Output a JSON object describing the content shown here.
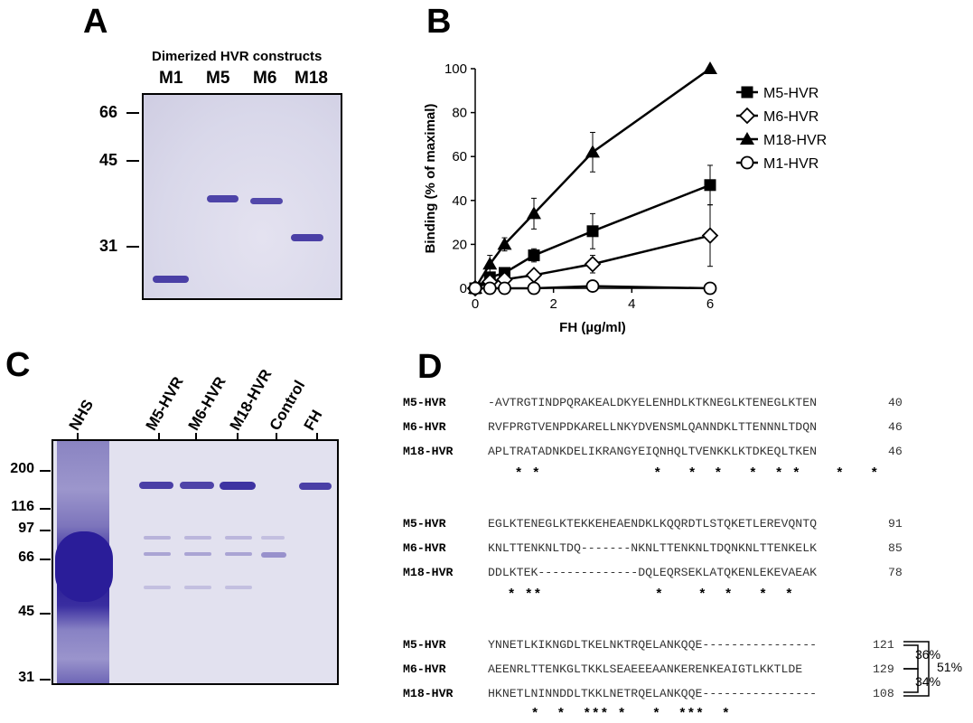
{
  "panels": {
    "a": "A",
    "b": "B",
    "c": "C",
    "d": "D"
  },
  "panelA": {
    "header": "Dimerized HVR constructs",
    "lanes": [
      "M1",
      "M5",
      "M6",
      "M18"
    ],
    "markers": [
      "66",
      "45",
      "31"
    ]
  },
  "panelC": {
    "lanes": [
      "NHS",
      "M5-HVR",
      "M6-HVR",
      "M18-HVR",
      "Control",
      "FH"
    ],
    "markers": [
      "200",
      "116",
      "97",
      "66",
      "45",
      "31"
    ]
  },
  "chart_data": {
    "type": "line",
    "title": "",
    "xlabel": "FH  (µg/ml)",
    "ylabel": "Binding (% of maximal)",
    "xlim": [
      0,
      6
    ],
    "ylim": [
      0,
      100
    ],
    "xticks": [
      "0",
      "2",
      "4",
      "6"
    ],
    "yticks": [
      "0",
      "20",
      "40",
      "60",
      "80",
      "100"
    ],
    "legend_position": "right",
    "series": [
      {
        "name": "M5-HVR",
        "marker": "square-filled",
        "x": [
          0,
          0.375,
          0.75,
          1.5,
          3,
          6
        ],
        "y": [
          0,
          5,
          7,
          15,
          26,
          47
        ],
        "err": [
          0,
          2,
          2,
          3,
          8,
          9
        ]
      },
      {
        "name": "M6-HVR",
        "marker": "diamond-open",
        "x": [
          0,
          0.375,
          0.75,
          1.5,
          3,
          6
        ],
        "y": [
          0,
          3,
          4,
          6,
          11,
          24
        ],
        "err": [
          0,
          1,
          1,
          2,
          4,
          14
        ]
      },
      {
        "name": "M18-HVR",
        "marker": "triangle-filled",
        "x": [
          0,
          0.375,
          0.75,
          1.5,
          3,
          6
        ],
        "y": [
          0,
          11,
          20,
          34,
          62,
          100
        ],
        "err": [
          0,
          4,
          3,
          7,
          9,
          0
        ]
      },
      {
        "name": "M1-HVR",
        "marker": "circle-open",
        "x": [
          0,
          0.375,
          0.75,
          1.5,
          3,
          6
        ],
        "y": [
          0,
          0,
          0,
          0,
          1,
          0
        ],
        "err": [
          0,
          0,
          0,
          0,
          0,
          0
        ]
      }
    ]
  },
  "panelD": {
    "blocks": [
      {
        "rows": [
          {
            "name": "M5-HVR",
            "seq": "-AVTRGTINDPQRAKEALDKYELENHDLKTKNEGLKTENEGLKTEN",
            "num": "40"
          },
          {
            "name": "M6-HVR",
            "seq": "RVFPRGTVENPDKARELLNKYDVENSMLQANNDKLTTENNNLTDQN",
            "num": "46"
          },
          {
            "name": "M18-HVR",
            "seq": "APLTRATADNKDELIKRANGYEIQNHQLTVENKKLKTDKEQLTKEN",
            "num": "46"
          }
        ],
        "stars": " * *             *   *  *   *  * *    *   *"
      },
      {
        "rows": [
          {
            "name": "M5-HVR",
            "seq": "EGLKTENEGLKTEKKEHEAENDKLKQQRDTLSTQKETLEREVQNTQ",
            "num": "91"
          },
          {
            "name": "M6-HVR",
            "seq": "KNLTTENKNLTDQ-------NKNLTTENKNLTDQNKNLTTENKELK",
            "num": "85"
          },
          {
            "name": "M18-HVR",
            "seq": "DDLKTEK--------------DQLEQRSEKLATQKENLEKEVAEAK",
            "num": "78"
          }
        ],
        "stars": " * **             *    *  *   *  *"
      },
      {
        "rows": [
          {
            "name": "M5-HVR",
            "seq": "YNNETLKIKNGDLTKELNKTRQELANKQQE----------------",
            "num": "121"
          },
          {
            "name": "M6-HVR",
            "seq": "AEENRLTTENKGLTKKLSEAEEEAANKERENKEAIGTLKKTLDE",
            "num": "129"
          },
          {
            "name": "M18-HVR",
            "seq": "HKNETLNINNDDLTKKLNETRQELANKQQE----------------",
            "num": "108"
          }
        ],
        "stars": " *  *  *** *   *  ***  *"
      }
    ],
    "identity": {
      "m5_m6": "36%",
      "m5_m18": "51%",
      "m6_m18": "34%"
    }
  }
}
